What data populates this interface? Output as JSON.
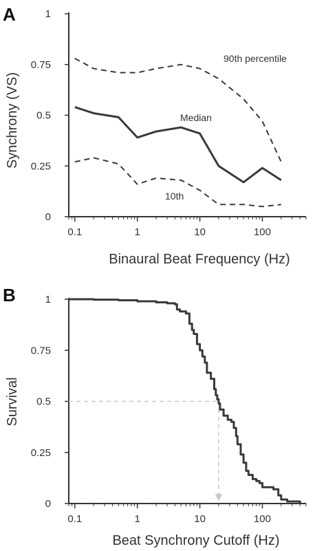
{
  "chart_data": [
    {
      "type": "line",
      "panel_label": "A",
      "xlabel": "Binaural Beat Frequency (Hz)",
      "ylabel": "Synchrony (VS)",
      "xscale": "log",
      "xlim": [
        0.08,
        500
      ],
      "ylim": [
        0,
        1
      ],
      "xticks": [
        "0.1",
        "1",
        "10",
        "100"
      ],
      "yticks": [
        "0",
        "0.25",
        "0.5",
        "0.75",
        "1"
      ],
      "grid": false,
      "legend": "none",
      "x": [
        0.1,
        0.2,
        0.5,
        1,
        2,
        5,
        10,
        20,
        50,
        100,
        200
      ],
      "series": [
        {
          "name": "90th percentile",
          "style": "dashed",
          "values": [
            0.78,
            0.73,
            0.71,
            0.71,
            0.73,
            0.75,
            0.73,
            0.68,
            0.58,
            0.47,
            0.27
          ]
        },
        {
          "name": "Median",
          "style": "solid",
          "values": [
            0.54,
            0.51,
            0.49,
            0.39,
            0.42,
            0.44,
            0.41,
            0.25,
            0.17,
            0.24,
            0.18
          ]
        },
        {
          "name": "10th",
          "style": "dashed",
          "values": [
            0.27,
            0.29,
            0.26,
            0.16,
            0.19,
            0.18,
            0.13,
            0.06,
            0.06,
            0.05,
            0.06
          ]
        }
      ],
      "colors": {
        "line": "#3a3a3a",
        "axis": "#333333"
      }
    },
    {
      "type": "line",
      "panel_label": "B",
      "xlabel": "Beat Synchrony Cutoff (Hz)",
      "ylabel": "Survival",
      "xscale": "log",
      "xlim": [
        0.08,
        500
      ],
      "ylim": [
        0,
        1
      ],
      "xticks": [
        "0.1",
        "1",
        "10",
        "100"
      ],
      "yticks": [
        "0",
        "0.25",
        "0.5",
        "0.75",
        "1"
      ],
      "grid": false,
      "legend": "none",
      "series": [
        {
          "name": "",
          "style": "solid",
          "x": [
            0.08,
            0.2,
            0.5,
            1,
            2,
            3,
            4,
            4.3,
            4.8,
            6,
            6.8,
            7.5,
            8,
            9,
            10,
            11,
            12,
            13,
            15,
            17,
            18,
            19,
            20,
            21,
            24,
            28,
            32,
            35,
            38,
            40,
            45,
            50,
            55,
            60,
            70,
            80,
            90,
            100,
            150,
            180,
            200,
            250,
            400
          ],
          "values": [
            1.0,
            0.998,
            0.995,
            0.99,
            0.985,
            0.98,
            0.975,
            0.95,
            0.94,
            0.93,
            0.88,
            0.85,
            0.83,
            0.78,
            0.75,
            0.72,
            0.69,
            0.64,
            0.61,
            0.56,
            0.53,
            0.51,
            0.49,
            0.46,
            0.43,
            0.41,
            0.4,
            0.37,
            0.33,
            0.29,
            0.24,
            0.2,
            0.16,
            0.14,
            0.12,
            0.11,
            0.1,
            0.08,
            0.07,
            0.04,
            0.02,
            0.01,
            0.0
          ]
        }
      ],
      "median_marker": {
        "x": 20,
        "y": 0.5,
        "color": "#c8c8c8"
      },
      "colors": {
        "line": "#3a3a3a",
        "axis": "#333333"
      }
    }
  ],
  "annotations": {
    "p90": "90th percentile",
    "median": "Median",
    "p10": "10th"
  }
}
